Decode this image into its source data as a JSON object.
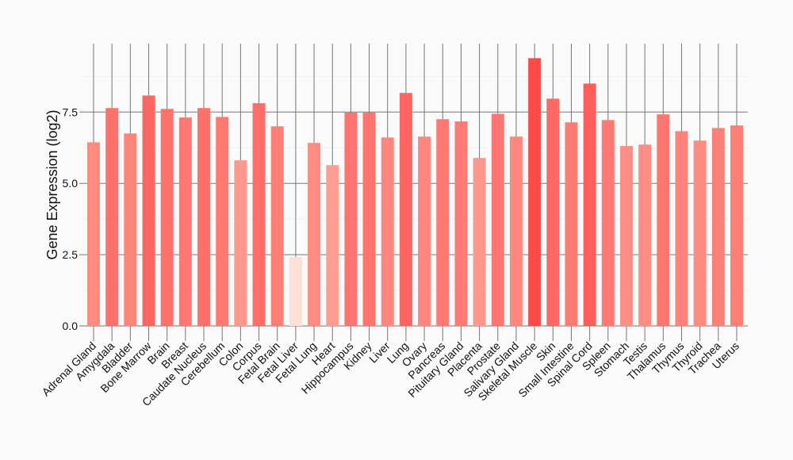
{
  "chart_data": {
    "type": "bar",
    "title": "",
    "xlabel": "",
    "ylabel": "Gene Expression (log2)",
    "ylim": [
      0,
      9.9
    ],
    "yticks": [
      "0.0",
      "2.5",
      "5.0",
      "7.5"
    ],
    "ytick_values": [
      0,
      2.5,
      5.0,
      7.5
    ],
    "grid": true,
    "legend": "none",
    "color_low": "#fde0d6",
    "color_mid": "#ff9a8c",
    "color_high": "#ff4a4a",
    "categories": [
      "Adrenal Gland",
      "Amygdala",
      "Bladder",
      "Bone Marrow",
      "Brain",
      "Breast",
      "Caudate Nucleus",
      "Cerebellum",
      "Colon",
      "Corpus",
      "Fetal Brain",
      "Fetal Liver",
      "Fetal Lung",
      "Heart",
      "Hippocampus",
      "Kidney",
      "Liver",
      "Lung",
      "Ovary",
      "Pancreas",
      "Pituitary Gland",
      "Placenta",
      "Prostate",
      "Salivary Gland",
      "Skeletal Muscle",
      "Skin",
      "Small Intestine",
      "Spinal Cord",
      "Spleen",
      "Stomach",
      "Testis",
      "Thalamus",
      "Thymus",
      "Thyroid",
      "Trachea",
      "Uterus"
    ],
    "values": [
      6.44,
      7.64,
      6.75,
      8.08,
      7.61,
      7.31,
      7.64,
      7.33,
      5.81,
      7.81,
      7.0,
      2.42,
      6.42,
      5.64,
      7.48,
      7.48,
      6.61,
      8.17,
      6.64,
      7.25,
      7.17,
      5.89,
      7.44,
      6.64,
      9.39,
      7.97,
      7.14,
      8.5,
      7.22,
      6.31,
      6.36,
      7.42,
      6.83,
      6.5,
      6.94,
      7.03
    ]
  }
}
